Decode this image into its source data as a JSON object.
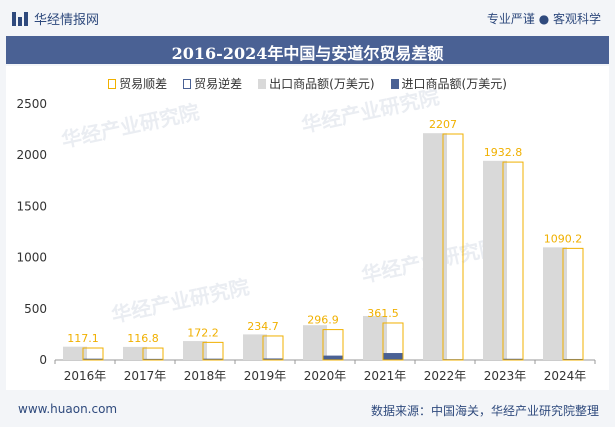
{
  "header": {
    "brand": "华经情报网",
    "tagline": "专业严谨 ● 客观科学"
  },
  "watermark": "华经产业研究院",
  "footer": {
    "site": "www.huaon.com",
    "source": "数据来源：中国海关，华经产业研究院整理"
  },
  "colors": {
    "export": "#d9d9d9",
    "import": "#4a6194",
    "surplus_border": "#f0b000",
    "deficit_border": "#4a6194"
  },
  "chart_data": {
    "type": "bar",
    "title": "2016-2024年中国与安道尔贸易差额",
    "categories": [
      "2016年",
      "2017年",
      "2018年",
      "2019年",
      "2020年",
      "2021年",
      "2022年",
      "2023年",
      "2024年"
    ],
    "series": [
      {
        "name": "贸易顺差",
        "values": [
          117.1,
          116.8,
          172.2,
          234.7,
          296.9,
          361.5,
          2207,
          1932.8,
          1090.2
        ]
      },
      {
        "name": "贸易逆差",
        "values": [
          0,
          0,
          0,
          0,
          0,
          0,
          0,
          0,
          0
        ]
      },
      {
        "name": "出口商品额(万美元)",
        "values": [
          130,
          128,
          185,
          250,
          340,
          430,
          2215,
          1945,
          1100
        ]
      },
      {
        "name": "进口商品额(万美元)",
        "values": [
          13,
          11,
          13,
          15,
          43,
          68,
          8,
          12,
          10
        ]
      }
    ],
    "labels": [
      "117.1",
      "116.8",
      "172.2",
      "234.7",
      "296.9",
      "361.5",
      "2207",
      "1932.8",
      "1090.2"
    ],
    "yticks": [
      "0",
      "500",
      "1000",
      "1500",
      "2000",
      "2500"
    ],
    "ylim": [
      0,
      2500
    ],
    "xlabel": "",
    "ylabel": ""
  }
}
